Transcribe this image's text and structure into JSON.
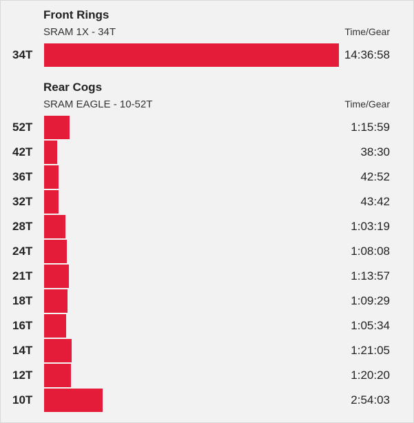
{
  "front": {
    "title": "Front Rings",
    "subtitle": "SRAM 1X - 34T",
    "column_header": "Time/Gear"
  },
  "rear": {
    "title": "Rear Cogs",
    "subtitle": "SRAM EAGLE - 10-52T",
    "column_header": "Time/Gear"
  },
  "colors": {
    "bar": "#e41c3a",
    "background": "#f2f2f2"
  },
  "chart_data": [
    {
      "type": "bar",
      "orientation": "horizontal",
      "title": "Front Rings",
      "subtitle": "SRAM 1X - 34T",
      "categories": [
        "34T"
      ],
      "time_labels": [
        "14:36:58"
      ],
      "values_seconds": [
        52618
      ]
    },
    {
      "type": "bar",
      "orientation": "horizontal",
      "title": "Rear Cogs",
      "subtitle": "SRAM EAGLE - 10-52T",
      "categories": [
        "52T",
        "42T",
        "36T",
        "32T",
        "28T",
        "24T",
        "21T",
        "18T",
        "16T",
        "14T",
        "12T",
        "10T"
      ],
      "time_labels": [
        "1:15:59",
        "38:30",
        "42:52",
        "43:42",
        "1:03:19",
        "1:08:08",
        "1:13:57",
        "1:09:29",
        "1:05:34",
        "1:21:05",
        "1:20:20",
        "2:54:03"
      ],
      "values_seconds": [
        4559,
        2310,
        2572,
        2622,
        3799,
        4088,
        4437,
        4169,
        3934,
        4865,
        4820,
        10443
      ]
    }
  ]
}
